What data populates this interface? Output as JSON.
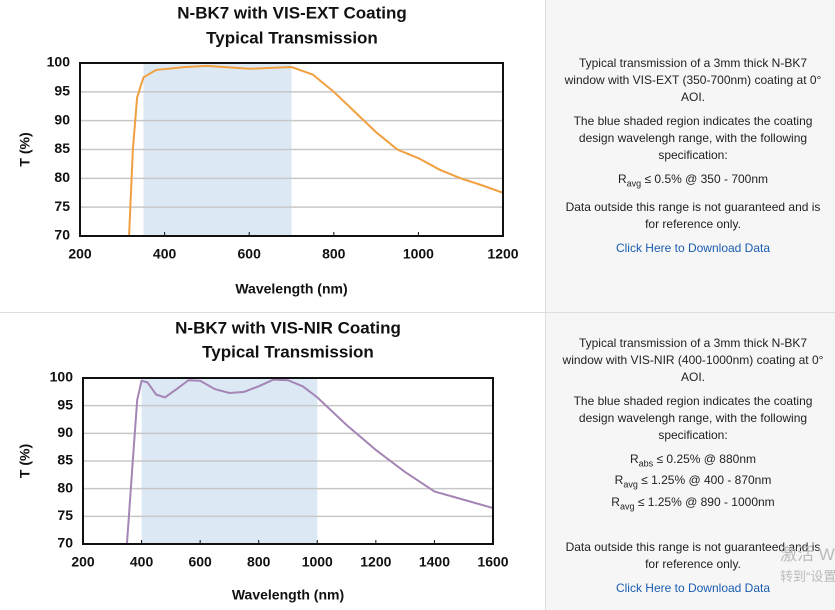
{
  "chart_data": [
    {
      "type": "line",
      "title": [
        "N-BK7 with VIS-EXT Coating",
        "Typical Transmission"
      ],
      "x_label": "Wavelength (nm)",
      "y_label": "T (%)",
      "xlim": [
        200,
        1200
      ],
      "xticks": [
        200,
        400,
        600,
        800,
        1000,
        1200
      ],
      "ylim": [
        70,
        100
      ],
      "yticks": [
        70,
        75,
        80,
        85,
        90,
        95,
        100
      ],
      "grid": true,
      "shaded_range": [
        350,
        700
      ],
      "shade_color": "#dce9f5",
      "series": [
        {
          "color": "#f0a040",
          "x": [
            316,
            325,
            335,
            350,
            380,
            450,
            500,
            600,
            700,
            750,
            800,
            850,
            900,
            950,
            1000,
            1050,
            1100,
            1150,
            1200
          ],
          "values": [
            70,
            85,
            94,
            97.5,
            98.8,
            99.3,
            99.5,
            99.0,
            99.3,
            98,
            95,
            91.5,
            88,
            85,
            83.5,
            81.5,
            80,
            78.8,
            77.5
          ]
        }
      ]
    },
    {
      "type": "line",
      "title": [
        "N-BK7 with VIS-NIR Coating",
        "Typical Transmission"
      ],
      "x_label": "Wavelength (nm)",
      "y_label": "T (%)",
      "xlim": [
        200,
        1600
      ],
      "xticks": [
        200,
        400,
        600,
        800,
        1000,
        1200,
        1400,
        1600
      ],
      "ylim": [
        70,
        100
      ],
      "yticks": [
        70,
        75,
        80,
        85,
        90,
        95,
        100
      ],
      "grid": true,
      "shaded_range": [
        400,
        1000
      ],
      "shade_color": "#dce9f5",
      "series": [
        {
          "color": "#a585b5",
          "x": [
            350,
            370,
            385,
            400,
            420,
            450,
            480,
            520,
            560,
            600,
            650,
            700,
            750,
            800,
            850,
            900,
            950,
            1000,
            1100,
            1200,
            1300,
            1400,
            1500,
            1600
          ],
          "values": [
            70,
            85,
            96,
            99.5,
            99.2,
            97,
            96.5,
            98,
            99.6,
            99.5,
            98,
            97.3,
            97.5,
            98.5,
            99.7,
            99.6,
            98.5,
            96.5,
            91.5,
            87,
            83,
            79.5,
            78,
            76.5
          ]
        }
      ]
    }
  ],
  "panels": [
    {
      "description": "Typical transmission of a 3mm thick N-BK7 window with VIS-EXT (350-700nm) coating at 0° AOI.",
      "shading_note": "The blue shaded region indicates the coating design wavelengh range, with the following specification:",
      "specs": [
        {
          "symbol": "R",
          "subscript": "avg",
          "text": "≤ 0.5% @ 350 - 700nm"
        }
      ],
      "disclaimer": "Data outside this range is not guaranteed and is for reference only.",
      "link": "Click Here to Download Data"
    },
    {
      "description": "Typical transmission of a 3mm thick N-BK7 window with VIS-NIR (400-1000nm) coating at 0° AOI.",
      "shading_note": "The blue shaded region indicates the coating design wavelengh range, with the following specification:",
      "specs": [
        {
          "symbol": "R",
          "subscript": "abs",
          "text": "≤ 0.25% @ 880nm"
        },
        {
          "symbol": "R",
          "subscript": "avg",
          "text": "≤ 1.25% @ 400 - 870nm"
        },
        {
          "symbol": "R",
          "subscript": "avg",
          "text": "≤ 1.25% @ 890 - 1000nm"
        }
      ],
      "disclaimer": "Data outside this range is not guaranteed and is for reference only.",
      "link": "Click Here to Download Data"
    }
  ],
  "watermark": [
    "激活 W",
    "转到“设置"
  ]
}
